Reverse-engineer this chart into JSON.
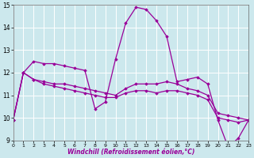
{
  "xlabel": "Windchill (Refroidissement éolien,°C)",
  "xlim": [
    0,
    23
  ],
  "ylim": [
    9,
    15
  ],
  "yticks": [
    9,
    10,
    11,
    12,
    13,
    14,
    15
  ],
  "xticks": [
    0,
    1,
    2,
    3,
    4,
    5,
    6,
    7,
    8,
    9,
    10,
    11,
    12,
    13,
    14,
    15,
    16,
    17,
    18,
    19,
    20,
    21,
    22,
    23
  ],
  "bg_color": "#cce8ed",
  "line_color": "#990099",
  "grid_color": "#ffffff",
  "series": [
    {
      "x": [
        0,
        1,
        2,
        3,
        4,
        5,
        6,
        7,
        8,
        9,
        10,
        11,
        12,
        13,
        14,
        15,
        16,
        17,
        18,
        19,
        20,
        21,
        22,
        23
      ],
      "y": [
        9.9,
        12.0,
        12.5,
        12.4,
        12.4,
        12.3,
        12.2,
        12.1,
        10.4,
        10.7,
        12.6,
        14.2,
        14.9,
        14.8,
        14.3,
        13.6,
        11.6,
        11.7,
        11.8,
        11.5,
        9.9,
        8.7,
        9.1,
        9.9
      ]
    },
    {
      "x": [
        0,
        1,
        2,
        3,
        4,
        5,
        6,
        7,
        8,
        9,
        10,
        11,
        12,
        13,
        14,
        15,
        16,
        17,
        18,
        19,
        20,
        21,
        22,
        23
      ],
      "y": [
        9.9,
        12.0,
        11.7,
        11.6,
        11.5,
        11.5,
        11.4,
        11.3,
        11.2,
        11.1,
        11.0,
        11.3,
        11.5,
        11.5,
        11.5,
        11.6,
        11.5,
        11.3,
        11.2,
        11.0,
        10.2,
        10.1,
        10.0,
        9.9
      ]
    },
    {
      "x": [
        0,
        1,
        2,
        3,
        4,
        5,
        6,
        7,
        8,
        9,
        10,
        11,
        12,
        13,
        14,
        15,
        16,
        17,
        18,
        19,
        20,
        21,
        22,
        23
      ],
      "y": [
        9.9,
        12.0,
        11.7,
        11.5,
        11.4,
        11.3,
        11.2,
        11.1,
        11.0,
        10.9,
        10.9,
        11.1,
        11.2,
        11.2,
        11.1,
        11.2,
        11.2,
        11.1,
        11.0,
        10.8,
        10.0,
        9.9,
        9.8,
        9.9
      ]
    }
  ]
}
